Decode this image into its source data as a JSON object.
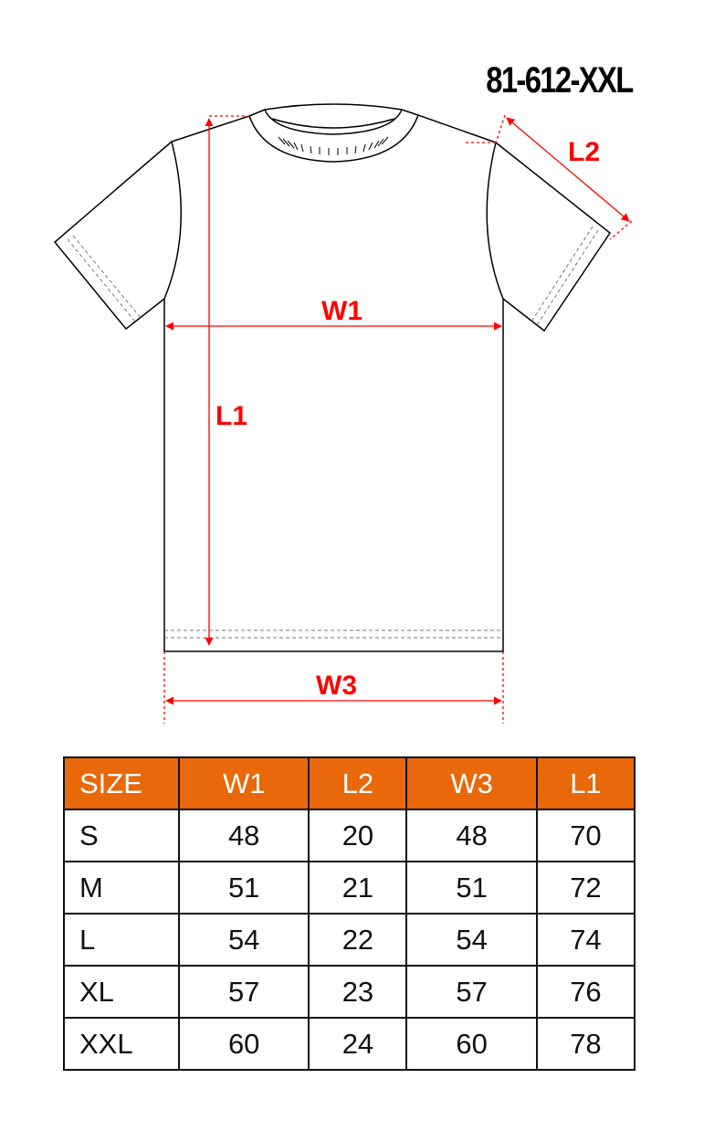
{
  "title": "81-612-XXL",
  "diagram": {
    "labels": {
      "w1": "W1",
      "l1": "L1",
      "l2": "L2",
      "w3": "W3"
    },
    "colors": {
      "measure": "#FF0000",
      "outline": "#000000"
    }
  },
  "table": {
    "header_color": "#E8680A",
    "headers": [
      "SIZE",
      "W1",
      "L2",
      "W3",
      "L1"
    ],
    "rows": [
      [
        "S",
        "48",
        "20",
        "48",
        "70"
      ],
      [
        "M",
        "51",
        "21",
        "51",
        "72"
      ],
      [
        "L",
        "54",
        "22",
        "54",
        "74"
      ],
      [
        "XL",
        "57",
        "23",
        "57",
        "76"
      ],
      [
        "XXL",
        "60",
        "24",
        "60",
        "78"
      ]
    ]
  }
}
